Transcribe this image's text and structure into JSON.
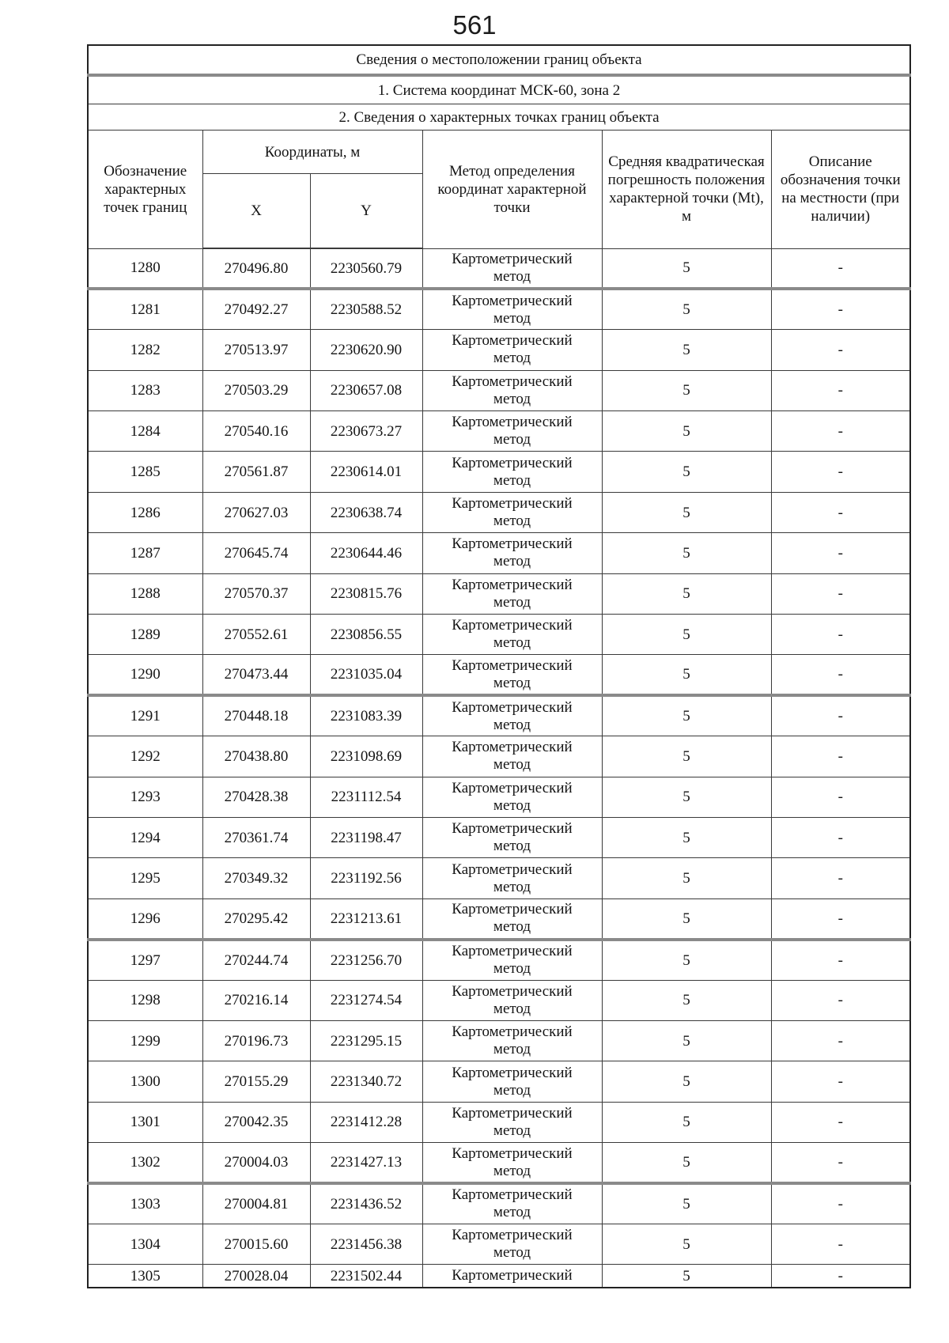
{
  "page": {
    "number": "561"
  },
  "colors": {
    "background": "#ffffff",
    "text": "#141414",
    "border": "#3a3a3a",
    "thick_divider": "#8a8a8a"
  },
  "table": {
    "title": "Сведения о местоположении границ объекта",
    "coordinate_system": "1. Система координат МСК-60, зона 2",
    "section_title": "2. Сведения о характерных точках границ объекта",
    "headers": {
      "point_label": "Обозначение характерных точек границ",
      "coordinates_group": "Координаты, м",
      "x": "X",
      "y": "Y",
      "method": "Метод определения координат характерной точки",
      "mt": "Средняя квадратическая погрешность положения характерной точки (Mt), м",
      "description": "Описание обозначения точки на местности (при наличии)"
    },
    "rows": [
      {
        "point": "1280",
        "x": "270496.80",
        "y": "2230560.79",
        "method_lines": [
          "Картометрический",
          "метод"
        ],
        "mt": "5",
        "description": "-",
        "thick_divider_after": true
      },
      {
        "point": "1281",
        "x": "270492.27",
        "y": "2230588.52",
        "method_lines": [
          "Картометрический",
          "метод"
        ],
        "mt": "5",
        "description": "-",
        "thick_divider_after": false
      },
      {
        "point": "1282",
        "x": "270513.97",
        "y": "2230620.90",
        "method_lines": [
          "Картометрический",
          "метод"
        ],
        "mt": "5",
        "description": "-",
        "thick_divider_after": false
      },
      {
        "point": "1283",
        "x": "270503.29",
        "y": "2230657.08",
        "method_lines": [
          "Картометрический",
          "метод"
        ],
        "mt": "5",
        "description": "-",
        "thick_divider_after": false
      },
      {
        "point": "1284",
        "x": "270540.16",
        "y": "2230673.27",
        "method_lines": [
          "Картометрический",
          "метод"
        ],
        "mt": "5",
        "description": "-",
        "thick_divider_after": false
      },
      {
        "point": "1285",
        "x": "270561.87",
        "y": "2230614.01",
        "method_lines": [
          "Картометрический",
          "метод"
        ],
        "mt": "5",
        "description": "-",
        "thick_divider_after": false
      },
      {
        "point": "1286",
        "x": "270627.03",
        "y": "2230638.74",
        "method_lines": [
          "Картометрический",
          "метод"
        ],
        "mt": "5",
        "description": "-",
        "thick_divider_after": false
      },
      {
        "point": "1287",
        "x": "270645.74",
        "y": "2230644.46",
        "method_lines": [
          "Картометрический",
          "метод"
        ],
        "mt": "5",
        "description": "-",
        "thick_divider_after": false
      },
      {
        "point": "1288",
        "x": "270570.37",
        "y": "2230815.76",
        "method_lines": [
          "Картометрический",
          "метод"
        ],
        "mt": "5",
        "description": "-",
        "thick_divider_after": false
      },
      {
        "point": "1289",
        "x": "270552.61",
        "y": "2230856.55",
        "method_lines": [
          "Картометрический",
          "метод"
        ],
        "mt": "5",
        "description": "-",
        "thick_divider_after": false
      },
      {
        "point": "1290",
        "x": "270473.44",
        "y": "2231035.04",
        "method_lines": [
          "Картометрический",
          "метод"
        ],
        "mt": "5",
        "description": "-",
        "thick_divider_after": true
      },
      {
        "point": "1291",
        "x": "270448.18",
        "y": "2231083.39",
        "method_lines": [
          "Картометрический",
          "метод"
        ],
        "mt": "5",
        "description": "-",
        "thick_divider_after": false
      },
      {
        "point": "1292",
        "x": "270438.80",
        "y": "2231098.69",
        "method_lines": [
          "Картометрический",
          "метод"
        ],
        "mt": "5",
        "description": "-",
        "thick_divider_after": false
      },
      {
        "point": "1293",
        "x": "270428.38",
        "y": "2231112.54",
        "method_lines": [
          "Картометрический",
          "метод"
        ],
        "mt": "5",
        "description": "-",
        "thick_divider_after": false
      },
      {
        "point": "1294",
        "x": "270361.74",
        "y": "2231198.47",
        "method_lines": [
          "Картометрический",
          "метод"
        ],
        "mt": "5",
        "description": "-",
        "thick_divider_after": false
      },
      {
        "point": "1295",
        "x": "270349.32",
        "y": "2231192.56",
        "method_lines": [
          "Картометрический",
          "метод"
        ],
        "mt": "5",
        "description": "-",
        "thick_divider_after": false
      },
      {
        "point": "1296",
        "x": "270295.42",
        "y": "2231213.61",
        "method_lines": [
          "Картометрический",
          "метод"
        ],
        "mt": "5",
        "description": "-",
        "thick_divider_after": true
      },
      {
        "point": "1297",
        "x": "270244.74",
        "y": "2231256.70",
        "method_lines": [
          "Картометрический",
          "метод"
        ],
        "mt": "5",
        "description": "-",
        "thick_divider_after": false
      },
      {
        "point": "1298",
        "x": "270216.14",
        "y": "2231274.54",
        "method_lines": [
          "Картометрический",
          "метод"
        ],
        "mt": "5",
        "description": "-",
        "thick_divider_after": false
      },
      {
        "point": "1299",
        "x": "270196.73",
        "y": "2231295.15",
        "method_lines": [
          "Картометрический",
          "метод"
        ],
        "mt": "5",
        "description": "-",
        "thick_divider_after": false
      },
      {
        "point": "1300",
        "x": "270155.29",
        "y": "2231340.72",
        "method_lines": [
          "Картометрический",
          "метод"
        ],
        "mt": "5",
        "description": "-",
        "thick_divider_after": false
      },
      {
        "point": "1301",
        "x": "270042.35",
        "y": "2231412.28",
        "method_lines": [
          "Картометрический",
          "метод"
        ],
        "mt": "5",
        "description": "-",
        "thick_divider_after": false
      },
      {
        "point": "1302",
        "x": "270004.03",
        "y": "2231427.13",
        "method_lines": [
          "Картометрический",
          "метод"
        ],
        "mt": "5",
        "description": "-",
        "thick_divider_after": true
      },
      {
        "point": "1303",
        "x": "270004.81",
        "y": "2231436.52",
        "method_lines": [
          "Картометрический",
          "метод"
        ],
        "mt": "5",
        "description": "-",
        "thick_divider_after": false
      },
      {
        "point": "1304",
        "x": "270015.60",
        "y": "2231456.38",
        "method_lines": [
          "Картометрический",
          "метод"
        ],
        "mt": "5",
        "description": "-",
        "thick_divider_after": false
      },
      {
        "point": "1305",
        "x": "270028.04",
        "y": "2231502.44",
        "method_lines": [
          "Картометрический"
        ],
        "mt": "5",
        "description": "-",
        "thick_divider_after": false
      }
    ]
  }
}
